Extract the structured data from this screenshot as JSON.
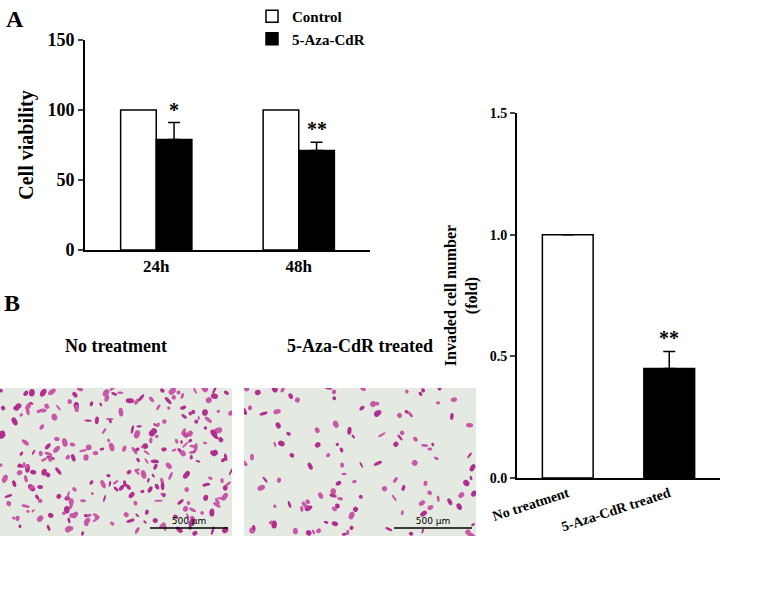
{
  "chart_data": [
    {
      "type": "bar",
      "categories": [
        "24h",
        "48h"
      ],
      "series": [
        {
          "name": "Control",
          "color": "#ffffff",
          "values": [
            100,
            100
          ]
        },
        {
          "name": "5-Aza-CdR",
          "color": "#000000",
          "values": [
            79,
            71
          ],
          "errors": [
            12,
            6
          ]
        }
      ],
      "y_label": "Cell viability",
      "ylim": [
        0,
        150
      ],
      "yticks": [
        0,
        50,
        100,
        150
      ],
      "legend": "top",
      "annotations": [
        {
          "text": "*",
          "category": "24h",
          "series": "5-Aza-CdR"
        },
        {
          "text": "**",
          "category": "48h",
          "series": "5-Aza-CdR"
        }
      ]
    },
    {
      "type": "bar",
      "categories": [
        "No treatment",
        "5-Aza-CdR treated"
      ],
      "values": [
        1.0,
        0.45
      ],
      "errors": [
        null,
        0.07
      ],
      "colors": [
        "#ffffff",
        "#000000"
      ],
      "y_label": "Invaded cell number\n(fold)",
      "ylim": [
        0,
        1.5
      ],
      "yticks": [
        {
          "value": 0,
          "label": "0.0"
        },
        0.5,
        {
          "value": 1,
          "label": "1.0"
        },
        1.5
      ],
      "annotations": [
        {
          "text": "**",
          "category": "5-Aza-CdR treated"
        }
      ]
    }
  ],
  "figure": {
    "panels": [
      "A",
      "B"
    ],
    "images": [
      {
        "caption": "No treatment",
        "scale_bar": "500 μm"
      },
      {
        "caption": "5-Aza-CdR treated",
        "scale_bar": "500 μm"
      }
    ]
  }
}
